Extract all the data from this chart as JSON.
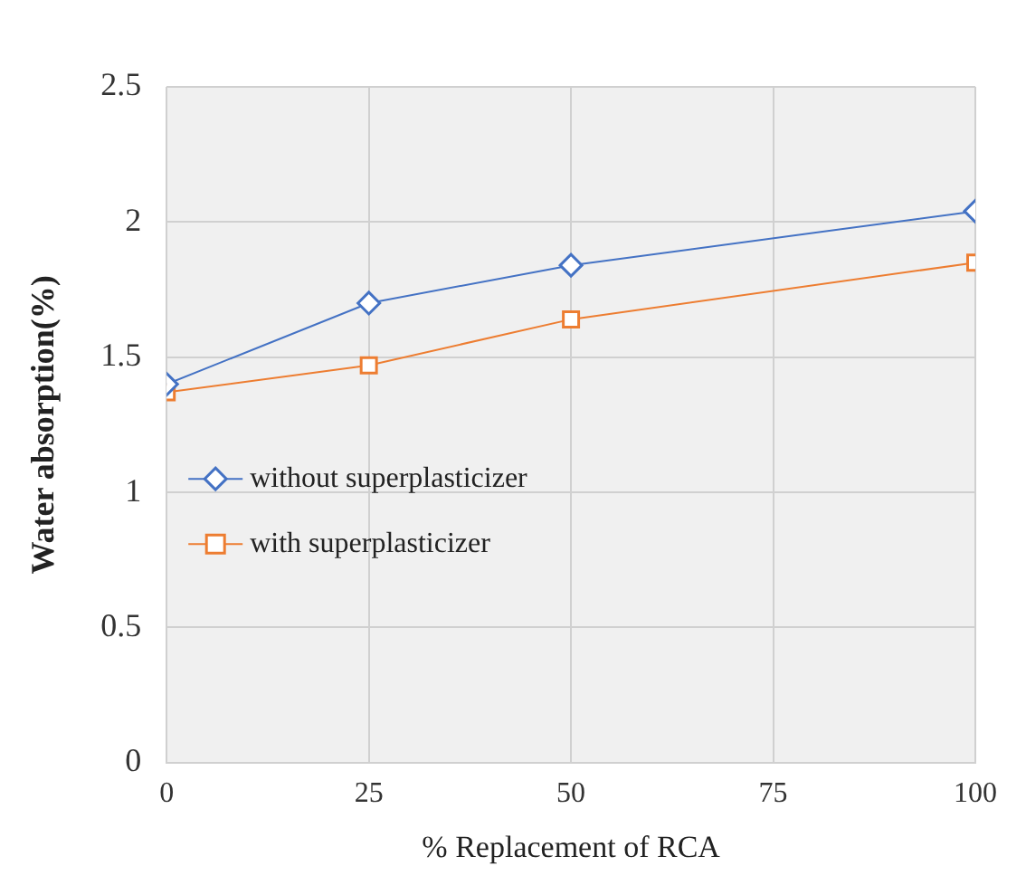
{
  "chart_data": {
    "type": "line",
    "xlabel": "% Replacement of RCA",
    "ylabel": "Water absorption(%)",
    "x": [
      0,
      25,
      50,
      100
    ],
    "series": [
      {
        "name": "without superplasticizer",
        "color": "#4472c4",
        "marker": "diamond",
        "values": [
          1.4,
          1.7,
          1.84,
          2.04
        ]
      },
      {
        "name": "with superplasticizer",
        "color": "#ed7d31",
        "marker": "square",
        "values": [
          1.37,
          1.47,
          1.64,
          1.85
        ]
      }
    ],
    "xlim": [
      0,
      100
    ],
    "xticks": [
      0,
      25,
      50,
      75,
      100
    ],
    "ylim": [
      0,
      2.5
    ],
    "yticks": [
      0,
      0.5,
      1,
      1.5,
      2,
      2.5
    ],
    "grid": true,
    "legend": "left"
  }
}
